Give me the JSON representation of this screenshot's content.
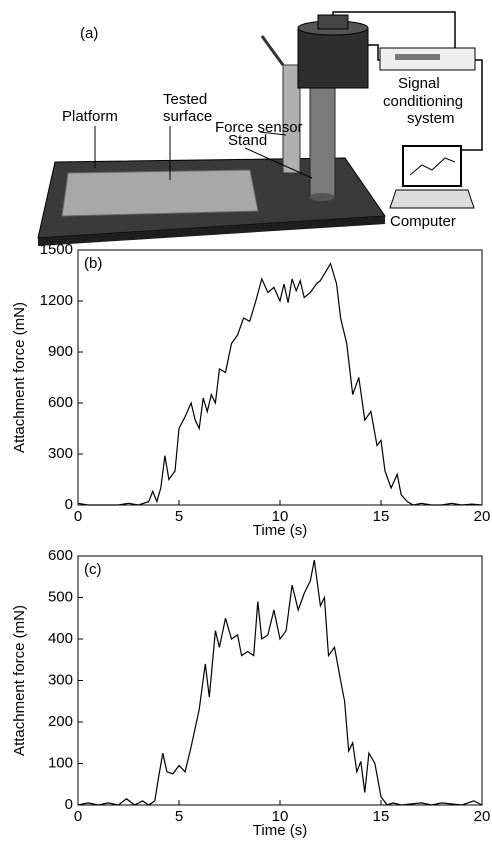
{
  "diagram": {
    "panel_label": "(a)",
    "labels": [
      "Force sensor",
      "Tested",
      "surface",
      "Platform",
      "Stand",
      "Signal",
      "conditioning",
      "system",
      "Computer"
    ]
  },
  "chart_data": [
    {
      "type": "line",
      "panel_label": "(b)",
      "x_label": "Time (s)",
      "y_label": "Attachment force (mN)",
      "xlim": [
        0,
        20
      ],
      "xticks": [
        0,
        5,
        10,
        15,
        20
      ],
      "ylim": [
        0,
        1500
      ],
      "yticks": [
        0,
        300,
        600,
        900,
        1200,
        1500
      ],
      "series": [
        {
          "color": "#000000",
          "x": [
            0,
            0.5,
            1,
            1.5,
            2,
            2.5,
            3,
            3.5,
            3.7,
            3.9,
            4.1,
            4.3,
            4.5,
            4.8,
            5,
            5.3,
            5.6,
            5.8,
            6,
            6.2,
            6.4,
            6.6,
            6.8,
            7,
            7.3,
            7.6,
            7.9,
            8.2,
            8.5,
            8.8,
            9.1,
            9.4,
            9.7,
            10,
            10.2,
            10.4,
            10.6,
            10.8,
            11,
            11.2,
            11.5,
            11.8,
            12,
            12.3,
            12.5,
            12.8,
            13,
            13.3,
            13.6,
            13.9,
            14.2,
            14.5,
            14.8,
            15,
            15.2,
            15.5,
            15.8,
            16,
            16.3,
            16.6,
            17,
            17.5,
            18,
            18.5,
            19,
            19.5,
            20
          ],
          "values": [
            10,
            0,
            0,
            0,
            0,
            10,
            0,
            20,
            80,
            20,
            100,
            290,
            150,
            200,
            450,
            520,
            600,
            500,
            450,
            630,
            550,
            650,
            600,
            800,
            780,
            950,
            1000,
            1100,
            1080,
            1200,
            1330,
            1250,
            1280,
            1200,
            1300,
            1190,
            1330,
            1260,
            1320,
            1220,
            1250,
            1300,
            1320,
            1380,
            1420,
            1300,
            1100,
            950,
            650,
            750,
            500,
            550,
            350,
            380,
            200,
            100,
            180,
            60,
            20,
            0,
            10,
            0,
            0,
            10,
            0,
            5,
            0
          ]
        }
      ]
    },
    {
      "type": "line",
      "panel_label": "(c)",
      "x_label": "Time (s)",
      "y_label": "Attachment force (mN)",
      "xlim": [
        0,
        20
      ],
      "xticks": [
        0,
        5,
        10,
        15,
        20
      ],
      "ylim": [
        0,
        600
      ],
      "yticks": [
        0,
        100,
        200,
        300,
        400,
        500,
        600
      ],
      "series": [
        {
          "color": "#000000",
          "x": [
            0,
            0.5,
            1,
            1.5,
            2,
            2.4,
            2.8,
            3.2,
            3.5,
            3.8,
            4,
            4.2,
            4.4,
            4.7,
            5,
            5.3,
            5.6,
            6,
            6.3,
            6.5,
            6.8,
            7,
            7.3,
            7.6,
            7.9,
            8.1,
            8.4,
            8.7,
            8.9,
            9.1,
            9.4,
            9.7,
            10,
            10.3,
            10.6,
            10.9,
            11.2,
            11.5,
            11.7,
            12,
            12.2,
            12.4,
            12.7,
            13,
            13.2,
            13.4,
            13.6,
            13.8,
            14,
            14.2,
            14.4,
            14.7,
            15,
            15.3,
            15.6,
            16,
            17,
            17.5,
            18,
            19,
            19.6,
            20
          ],
          "values": [
            0,
            5,
            0,
            5,
            0,
            15,
            0,
            10,
            0,
            10,
            70,
            125,
            80,
            75,
            95,
            80,
            140,
            230,
            340,
            260,
            420,
            380,
            450,
            400,
            410,
            360,
            370,
            360,
            490,
            400,
            410,
            470,
            400,
            420,
            530,
            470,
            510,
            540,
            590,
            480,
            500,
            360,
            380,
            300,
            250,
            130,
            150,
            80,
            105,
            30,
            125,
            100,
            20,
            0,
            5,
            0,
            5,
            0,
            5,
            0,
            10,
            0
          ]
        }
      ]
    }
  ]
}
